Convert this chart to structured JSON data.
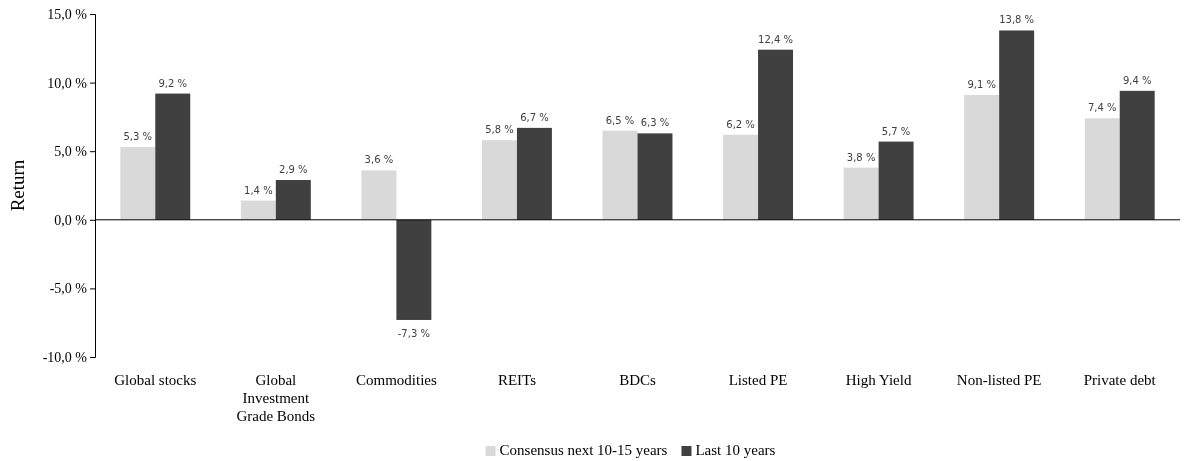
{
  "chart_data": {
    "type": "bar",
    "ylabel": "Return",
    "categories": [
      "Global stocks",
      "Global Investment Grade Bonds",
      "Commodities",
      "REITs",
      "BDCs",
      "Listed PE",
      "High Yield",
      "Non-listed PE",
      "Private debt"
    ],
    "series": [
      {
        "name": "Consensus next 10-15 years",
        "color": "#d9d9d9",
        "values": [
          5.3,
          1.4,
          3.6,
          5.8,
          6.5,
          6.2,
          3.8,
          9.1,
          7.4
        ],
        "value_labels": [
          "5,3 %",
          "1,4 %",
          "3,6 %",
          "5,8 %",
          "6,5 %",
          "6,2 %",
          "3,8 %",
          "9,1 %",
          "7,4 %"
        ]
      },
      {
        "name": "Last 10 years",
        "color": "#404040",
        "values": [
          9.2,
          2.9,
          -7.3,
          6.7,
          6.3,
          12.4,
          5.7,
          13.8,
          9.4
        ],
        "value_labels": [
          "9,2 %",
          "2,9 %",
          "-7,3 %",
          "6,7 %",
          "6,3 %",
          "12,4 %",
          "5,7 %",
          "13,8 %",
          "9,4 %"
        ]
      }
    ],
    "ylim": [
      -10,
      15
    ],
    "yticks": [
      {
        "value": -10,
        "label": "-10,0 %"
      },
      {
        "value": -5,
        "label": "-5,0 %"
      },
      {
        "value": 0,
        "label": "0,0 %"
      },
      {
        "value": 5,
        "label": "5,0 %"
      },
      {
        "value": 10,
        "label": "10,0 %"
      },
      {
        "value": 15,
        "label": "15,0 %"
      }
    ],
    "legend": "bottom"
  }
}
